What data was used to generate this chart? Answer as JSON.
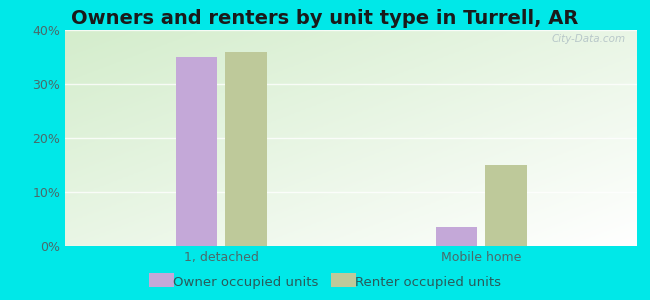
{
  "title": "Owners and renters by unit type in Turrell, AR",
  "categories": [
    "1, detached",
    "Mobile home"
  ],
  "owner_values": [
    35.0,
    3.5
  ],
  "renter_values": [
    36.0,
    15.0
  ],
  "owner_color": "#c4a8d8",
  "renter_color": "#bec99a",
  "background_outer": "#00e8e8",
  "ylim": [
    0,
    40
  ],
  "yticks": [
    0,
    10,
    20,
    30,
    40
  ],
  "ytick_labels": [
    "0%",
    "10%",
    "20%",
    "30%",
    "40%"
  ],
  "bar_width": 0.32,
  "group_positions": [
    1.0,
    3.0
  ],
  "title_fontsize": 14,
  "tick_fontsize": 9,
  "legend_fontsize": 9.5,
  "watermark": "City-Data.com",
  "legend_owner": "Owner occupied units",
  "legend_renter": "Renter occupied units"
}
